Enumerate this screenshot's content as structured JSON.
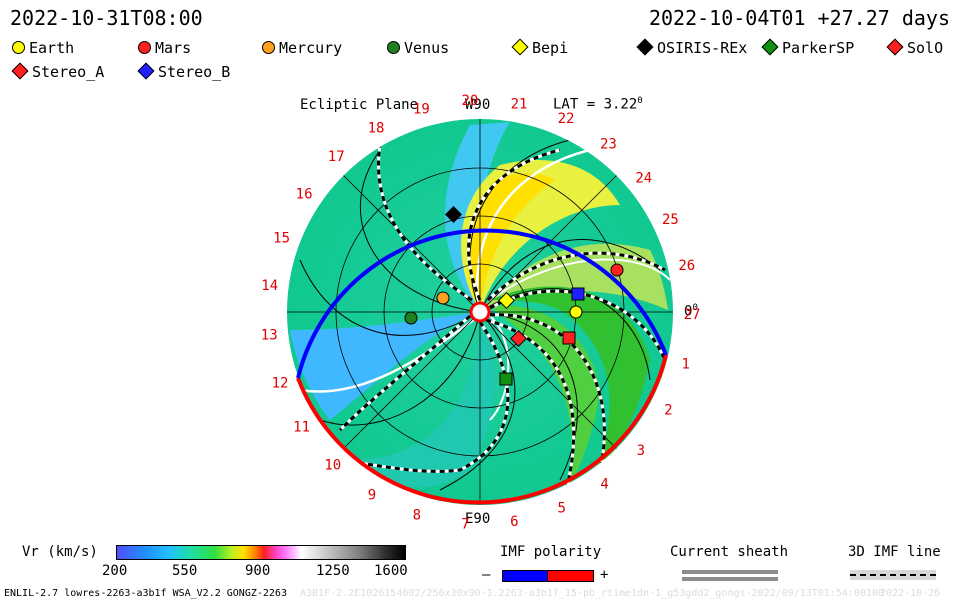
{
  "header": {
    "left_time": "2022-10-31T08:00",
    "right_time": "2022-10-04T01 +27.27 days"
  },
  "legend": [
    {
      "label": "Earth",
      "shape": "circle",
      "color": "#ffff00"
    },
    {
      "label": "Mars",
      "shape": "circle",
      "color": "#ff2020"
    },
    {
      "label": "Mercury",
      "shape": "circle",
      "color": "#ffa020"
    },
    {
      "label": "Venus",
      "shape": "circle",
      "color": "#208020"
    },
    {
      "label": "Bepi",
      "shape": "diamond",
      "color": "#ffff00"
    },
    {
      "label": "OSIRIS-REx",
      "shape": "diamond",
      "color": "#000000"
    },
    {
      "label": "ParkerSP",
      "shape": "diamond",
      "color": "#109010"
    },
    {
      "label": "SolO",
      "shape": "diamond",
      "color": "#ff2020"
    },
    {
      "label": "Stereo_A",
      "shape": "diamond",
      "color": "#ff2020"
    },
    {
      "label": "Stereo_B",
      "shape": "diamond",
      "color": "#2020ff"
    }
  ],
  "plot": {
    "title": "Ecliptic Plane",
    "top_label": "W90",
    "bottom_label": "E90",
    "right_label": "0",
    "right_label_sup": "0",
    "lat_label": "LAT = 3.22",
    "lat_label_sup": "0",
    "carrington_ticks": [
      "1",
      "2",
      "3",
      "4",
      "5",
      "6",
      "7",
      "8",
      "9",
      "10",
      "11",
      "12",
      "13",
      "14",
      "15",
      "16",
      "17",
      "18",
      "19",
      "20",
      "21",
      "22",
      "23",
      "24",
      "25",
      "26",
      "27"
    ]
  },
  "colorbar": {
    "label": "Vr (km/s)",
    "ticks": [
      "200",
      "550",
      "900",
      "1250",
      "1600"
    ]
  },
  "imf_polarity": {
    "title": "IMF polarity",
    "minus": "–",
    "plus": "+",
    "neg_color": "#0000ff",
    "pos_color": "#ff0000"
  },
  "current_sheath": {
    "title": "Current sheath"
  },
  "imf_line": {
    "title": "3D IMF line"
  },
  "footer": {
    "left": "ENLIL-2.7 lowres-2263-a3b1f WSA_V2.2 GONGZ-2263",
    "faint": "A3B1F-2.2E1026154602/256x30x90-1.2263-a3b1f_15-pb_rtime1dn-1_g53gdd2_gongs-2022/09/13T01:54:00100",
    "right": "2022-10-26"
  }
}
